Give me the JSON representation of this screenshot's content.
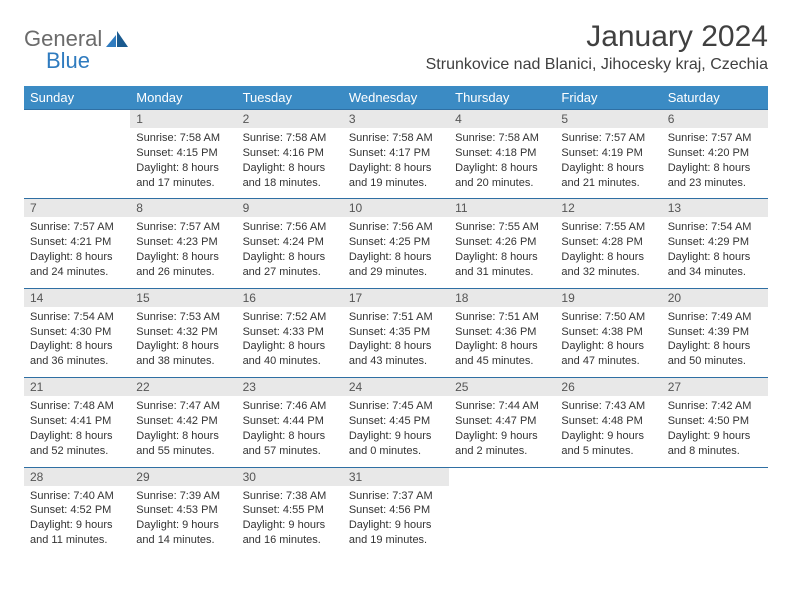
{
  "logo": {
    "word1": "General",
    "word2": "Blue"
  },
  "title": "January 2024",
  "location": "Strunkovice nad Blanici, Jihocesky kraj, Czechia",
  "colors": {
    "header_bg": "#3b8bc4",
    "daynum_bg": "#e8e8e8",
    "rule": "#2f6fa3",
    "logo_gray": "#6b6b6b",
    "logo_blue": "#2f7bbf"
  },
  "day_names": [
    "Sunday",
    "Monday",
    "Tuesday",
    "Wednesday",
    "Thursday",
    "Friday",
    "Saturday"
  ],
  "weeks": [
    {
      "nums": [
        "",
        "1",
        "2",
        "3",
        "4",
        "5",
        "6"
      ],
      "cells": [
        "",
        "Sunrise: 7:58 AM\nSunset: 4:15 PM\nDaylight: 8 hours and 17 minutes.",
        "Sunrise: 7:58 AM\nSunset: 4:16 PM\nDaylight: 8 hours and 18 minutes.",
        "Sunrise: 7:58 AM\nSunset: 4:17 PM\nDaylight: 8 hours and 19 minutes.",
        "Sunrise: 7:58 AM\nSunset: 4:18 PM\nDaylight: 8 hours and 20 minutes.",
        "Sunrise: 7:57 AM\nSunset: 4:19 PM\nDaylight: 8 hours and 21 minutes.",
        "Sunrise: 7:57 AM\nSunset: 4:20 PM\nDaylight: 8 hours and 23 minutes."
      ]
    },
    {
      "nums": [
        "7",
        "8",
        "9",
        "10",
        "11",
        "12",
        "13"
      ],
      "cells": [
        "Sunrise: 7:57 AM\nSunset: 4:21 PM\nDaylight: 8 hours and 24 minutes.",
        "Sunrise: 7:57 AM\nSunset: 4:23 PM\nDaylight: 8 hours and 26 minutes.",
        "Sunrise: 7:56 AM\nSunset: 4:24 PM\nDaylight: 8 hours and 27 minutes.",
        "Sunrise: 7:56 AM\nSunset: 4:25 PM\nDaylight: 8 hours and 29 minutes.",
        "Sunrise: 7:55 AM\nSunset: 4:26 PM\nDaylight: 8 hours and 31 minutes.",
        "Sunrise: 7:55 AM\nSunset: 4:28 PM\nDaylight: 8 hours and 32 minutes.",
        "Sunrise: 7:54 AM\nSunset: 4:29 PM\nDaylight: 8 hours and 34 minutes."
      ]
    },
    {
      "nums": [
        "14",
        "15",
        "16",
        "17",
        "18",
        "19",
        "20"
      ],
      "cells": [
        "Sunrise: 7:54 AM\nSunset: 4:30 PM\nDaylight: 8 hours and 36 minutes.",
        "Sunrise: 7:53 AM\nSunset: 4:32 PM\nDaylight: 8 hours and 38 minutes.",
        "Sunrise: 7:52 AM\nSunset: 4:33 PM\nDaylight: 8 hours and 40 minutes.",
        "Sunrise: 7:51 AM\nSunset: 4:35 PM\nDaylight: 8 hours and 43 minutes.",
        "Sunrise: 7:51 AM\nSunset: 4:36 PM\nDaylight: 8 hours and 45 minutes.",
        "Sunrise: 7:50 AM\nSunset: 4:38 PM\nDaylight: 8 hours and 47 minutes.",
        "Sunrise: 7:49 AM\nSunset: 4:39 PM\nDaylight: 8 hours and 50 minutes."
      ]
    },
    {
      "nums": [
        "21",
        "22",
        "23",
        "24",
        "25",
        "26",
        "27"
      ],
      "cells": [
        "Sunrise: 7:48 AM\nSunset: 4:41 PM\nDaylight: 8 hours and 52 minutes.",
        "Sunrise: 7:47 AM\nSunset: 4:42 PM\nDaylight: 8 hours and 55 minutes.",
        "Sunrise: 7:46 AM\nSunset: 4:44 PM\nDaylight: 8 hours and 57 minutes.",
        "Sunrise: 7:45 AM\nSunset: 4:45 PM\nDaylight: 9 hours and 0 minutes.",
        "Sunrise: 7:44 AM\nSunset: 4:47 PM\nDaylight: 9 hours and 2 minutes.",
        "Sunrise: 7:43 AM\nSunset: 4:48 PM\nDaylight: 9 hours and 5 minutes.",
        "Sunrise: 7:42 AM\nSunset: 4:50 PM\nDaylight: 9 hours and 8 minutes."
      ]
    },
    {
      "nums": [
        "28",
        "29",
        "30",
        "31",
        "",
        "",
        ""
      ],
      "cells": [
        "Sunrise: 7:40 AM\nSunset: 4:52 PM\nDaylight: 9 hours and 11 minutes.",
        "Sunrise: 7:39 AM\nSunset: 4:53 PM\nDaylight: 9 hours and 14 minutes.",
        "Sunrise: 7:38 AM\nSunset: 4:55 PM\nDaylight: 9 hours and 16 minutes.",
        "Sunrise: 7:37 AM\nSunset: 4:56 PM\nDaylight: 9 hours and 19 minutes.",
        "",
        "",
        ""
      ]
    }
  ]
}
